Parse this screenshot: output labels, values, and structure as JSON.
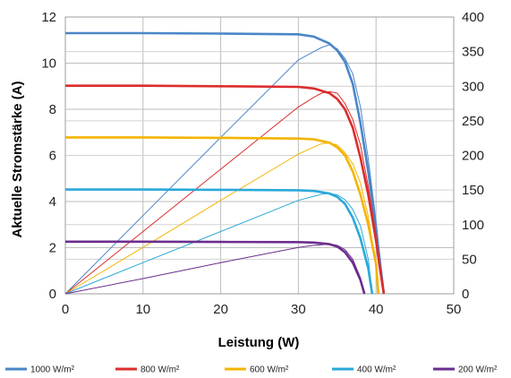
{
  "chart_data": {
    "type": "line",
    "xlabel": "Leistung (W)",
    "ylabel": "Aktuelle Stromstärke (A)",
    "xlim": [
      0,
      50
    ],
    "ylim_left": [
      0,
      12
    ],
    "ylim_right": [
      0,
      400
    ],
    "x_ticks": [
      "0",
      "10",
      "20",
      "30",
      "40",
      "50"
    ],
    "y_left_ticks": [
      "0",
      "2",
      "4",
      "6",
      "8",
      "10",
      "12"
    ],
    "y_right_ticks": [
      "0",
      "50",
      "100",
      "150",
      "200",
      "250",
      "300",
      "350",
      "400"
    ],
    "grid": true,
    "legend_position": "bottom",
    "series": [
      {
        "name": "1000 W/m²",
        "color": "#4a86c8",
        "current": {
          "x": [
            0,
            10,
            20,
            30,
            32,
            34,
            35,
            36,
            37,
            38,
            39,
            40,
            40.5,
            41
          ],
          "y": [
            11.3,
            11.3,
            11.28,
            11.25,
            11.15,
            10.85,
            10.55,
            10.05,
            9.1,
            7.4,
            5.3,
            2.8,
            1.4,
            0
          ]
        },
        "power": {
          "x": [
            0,
            10,
            20,
            30,
            32,
            33,
            34,
            35,
            36,
            37,
            38,
            39,
            40,
            41
          ],
          "y": [
            0,
            113,
            226,
            338,
            350,
            356,
            360,
            354,
            340,
            318,
            270,
            195,
            105,
            0
          ]
        }
      },
      {
        "name": "800 W/m²",
        "color": "#dd2c2c",
        "current": {
          "x": [
            0,
            10,
            20,
            30,
            32,
            34,
            35,
            36,
            37,
            38,
            39,
            40,
            40.5,
            41
          ],
          "y": [
            9.02,
            9.02,
            9.0,
            8.97,
            8.9,
            8.7,
            8.45,
            8.0,
            7.2,
            5.9,
            4.3,
            2.3,
            1.1,
            0
          ]
        },
        "power": {
          "x": [
            0,
            10,
            20,
            30,
            32,
            33,
            34,
            35,
            36,
            37,
            38,
            39,
            40,
            41
          ],
          "y": [
            0,
            90,
            180,
            270,
            284,
            290,
            292,
            290,
            275,
            252,
            215,
            155,
            85,
            0
          ]
        }
      },
      {
        "name": "600 W/m²",
        "color": "#f4b400",
        "current": {
          "x": [
            0,
            10,
            20,
            30,
            32,
            34,
            35,
            36,
            37,
            38,
            39,
            40,
            40.3
          ],
          "y": [
            6.78,
            6.78,
            6.76,
            6.73,
            6.7,
            6.55,
            6.35,
            6.0,
            5.3,
            4.3,
            3.0,
            1.3,
            0
          ]
        },
        "power": {
          "x": [
            0,
            10,
            20,
            30,
            32,
            33,
            34,
            35,
            36,
            37,
            38,
            39,
            40,
            40.3
          ],
          "y": [
            0,
            67,
            135,
            202,
            212,
            217,
            218,
            215,
            204,
            188,
            160,
            112,
            40,
            0
          ]
        }
      },
      {
        "name": "400 W/m²",
        "color": "#2aa9d8",
        "current": {
          "x": [
            0,
            10,
            20,
            30,
            32,
            34,
            35,
            36,
            37,
            38,
            39,
            39.5
          ],
          "y": [
            4.52,
            4.52,
            4.51,
            4.49,
            4.46,
            4.35,
            4.2,
            3.9,
            3.3,
            2.4,
            1.1,
            0
          ]
        },
        "power": {
          "x": [
            0,
            10,
            20,
            30,
            32,
            33,
            34,
            35,
            36,
            37,
            38,
            39,
            39.5
          ],
          "y": [
            0,
            45,
            90,
            135,
            141,
            144,
            145,
            143,
            136,
            122,
            98,
            50,
            0
          ]
        }
      },
      {
        "name": "200 W/m²",
        "color": "#6b2d8f",
        "current": {
          "x": [
            0,
            10,
            20,
            30,
            32,
            34,
            35,
            36,
            37,
            38,
            38.5
          ],
          "y": [
            2.26,
            2.26,
            2.25,
            2.24,
            2.22,
            2.15,
            2.05,
            1.8,
            1.35,
            0.6,
            0
          ]
        },
        "power": {
          "x": [
            0,
            10,
            20,
            30,
            32,
            33,
            34,
            35,
            36,
            37,
            38,
            38.5
          ],
          "y": [
            0,
            22,
            45,
            67,
            70,
            71,
            72,
            70,
            64,
            50,
            23,
            0
          ]
        }
      }
    ]
  }
}
